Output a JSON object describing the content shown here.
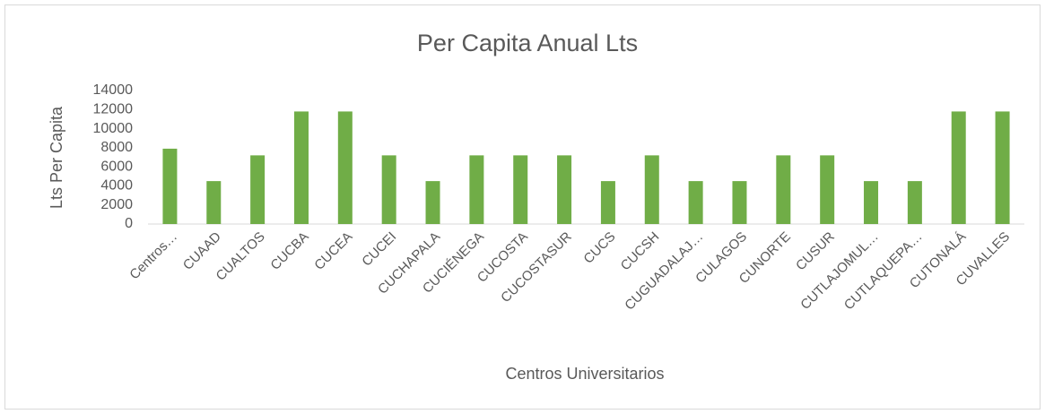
{
  "chart_data": {
    "type": "bar",
    "title": "Per Capita Anual Lts",
    "y_label": "Lts Per Capita",
    "x_label": "Centros Universitarios",
    "categories": [
      "Centros…",
      "CUAAD",
      "CUALTOS",
      "CUCBA",
      "CUCEA",
      "CUCEI",
      "CUCHAPALA",
      "CUCIÉNEGA",
      "CUCOSTA",
      "CUCOSTASUR",
      "CUCS",
      "CUCSH",
      "CUGUADALAJ…",
      "CULAGOS",
      "CUNORTE",
      "CUSUR",
      "CUTLAJOMUL…",
      "CUTLAQUEPA…",
      "CUTONALÁ",
      "CUVALLES"
    ],
    "values": [
      7900,
      4500,
      7200,
      11800,
      11800,
      7200,
      4500,
      7200,
      7200,
      7200,
      4500,
      7200,
      4500,
      4500,
      7200,
      7200,
      4500,
      4500,
      11800,
      11800
    ],
    "color": "#70ad47",
    "ylim": [
      0,
      14000
    ],
    "yticks": [
      0,
      2000,
      4000,
      6000,
      8000,
      10000,
      12000,
      14000
    ],
    "grid": false
  }
}
